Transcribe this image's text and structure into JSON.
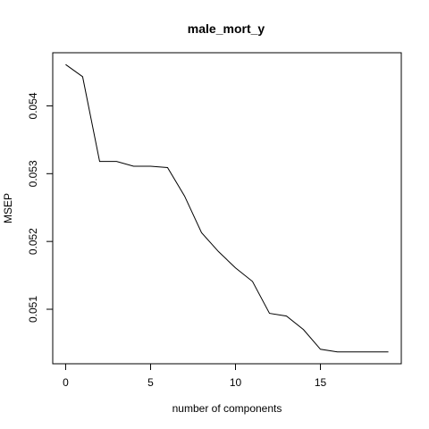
{
  "chart_data": {
    "type": "line",
    "title": "male_mort_y",
    "xlabel": "number of components",
    "ylabel": "MSEP",
    "x": [
      0,
      1,
      2,
      3,
      4,
      5,
      6,
      7,
      8,
      9,
      10,
      11,
      12,
      13,
      14,
      15,
      16,
      17,
      18,
      19
    ],
    "y": [
      0.05461,
      0.05443,
      0.05318,
      0.05318,
      0.05311,
      0.05311,
      0.05309,
      0.05267,
      0.05213,
      0.05185,
      0.05161,
      0.05141,
      0.05094,
      0.0509,
      0.0507,
      0.05041,
      0.05037,
      0.05037,
      0.05037,
      0.05037
    ],
    "xticks": [
      0,
      5,
      10,
      15
    ],
    "xtick_labels": [
      "0",
      "5",
      "10",
      "15"
    ],
    "yticks": [
      0.051,
      0.052,
      0.053,
      0.054
    ],
    "ytick_labels": [
      "0.051",
      "0.052",
      "0.053",
      "0.054"
    ],
    "xlim": [
      -0.76,
      19.76
    ],
    "ylim": [
      0.050196,
      0.054784
    ],
    "grid": false,
    "line_color": "#000000"
  }
}
